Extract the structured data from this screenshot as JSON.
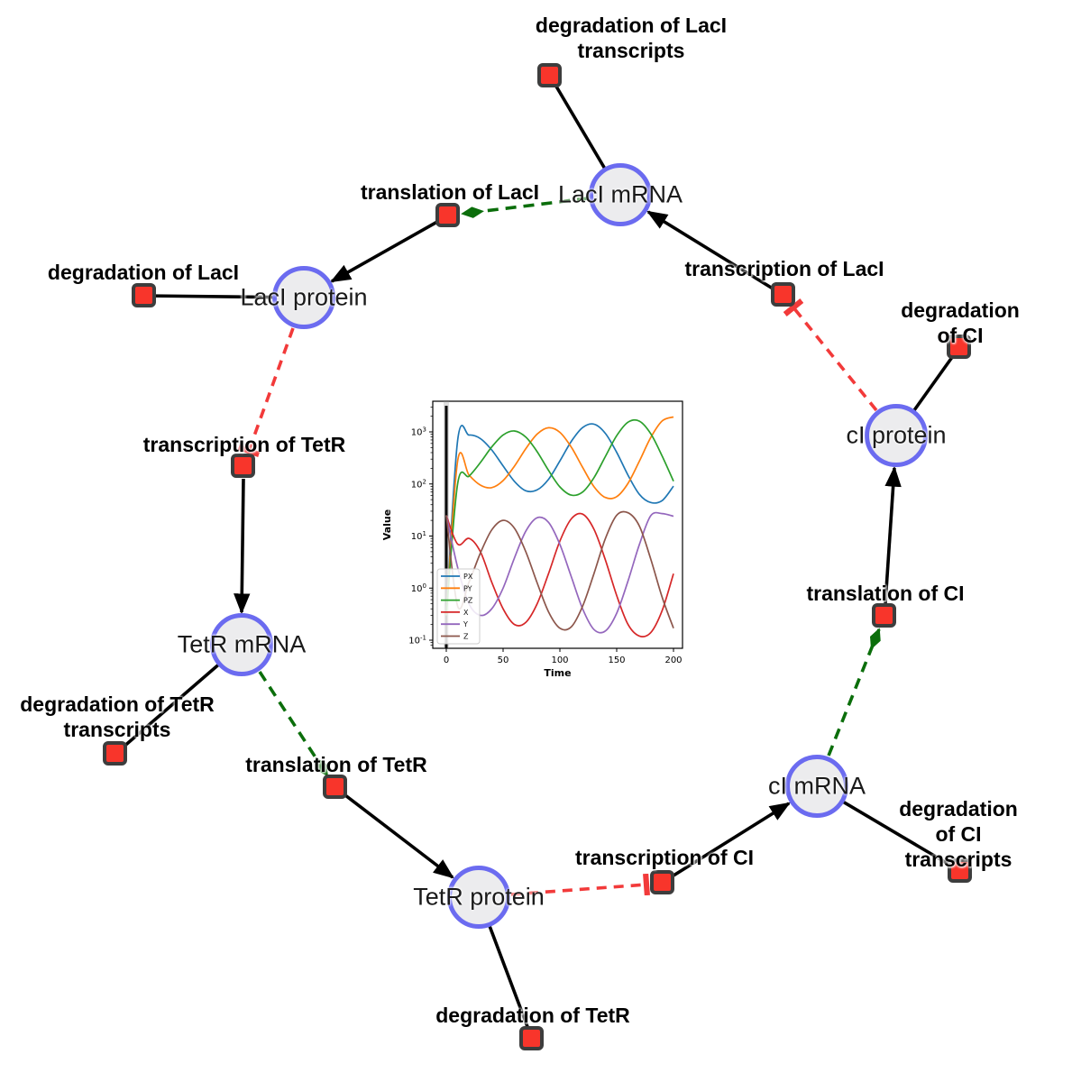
{
  "diagram": {
    "background": "#ffffff",
    "colors": {
      "species_fill": "#ececee",
      "species_border": "#6b6bf0",
      "reaction_fill": "#f8352b",
      "reaction_border": "#3d3d3d",
      "edge_black": "#000000",
      "edge_modifier_green": "#0b6e0b",
      "edge_inhibition_red": "#f23a3a"
    },
    "species_nodes": [
      {
        "id": "laci-mrna",
        "label": "LacI mRNA"
      },
      {
        "id": "laci-protein",
        "label": "LacI protein"
      },
      {
        "id": "tetr-mrna",
        "label": "TetR mRNA"
      },
      {
        "id": "tetr-protein",
        "label": "TetR protein"
      },
      {
        "id": "ci-mrna",
        "label": "cI mRNA"
      },
      {
        "id": "ci-protein",
        "label": "cI protein"
      }
    ],
    "reaction_nodes": [
      {
        "id": "deg-laci-transcripts",
        "label": "degradation of LacI\ntranscripts"
      },
      {
        "id": "translation-laci",
        "label": "translation of LacI"
      },
      {
        "id": "deg-laci",
        "label": "degradation of LacI"
      },
      {
        "id": "transcription-laci",
        "label": "transcription of LacI"
      },
      {
        "id": "deg-ci",
        "label": "degradation of CI"
      },
      {
        "id": "transcription-tetr",
        "label": "transcription of TetR"
      },
      {
        "id": "deg-tetr-transcripts",
        "label": "degradation of TetR\ntranscripts"
      },
      {
        "id": "translation-tetr",
        "label": "translation of TetR"
      },
      {
        "id": "deg-tetr",
        "label": "degradation of TetR"
      },
      {
        "id": "transcription-ci",
        "label": "transcription of CI"
      },
      {
        "id": "deg-ci-transcripts",
        "label": "degradation of CI\ntranscripts"
      },
      {
        "id": "translation-ci",
        "label": "translation of CI"
      }
    ],
    "edge_types": {
      "solid_black": "reactant/product link",
      "dashed_green_arrow": "modifier (mRNA catalyses translation)",
      "dashed_red_tee": "inhibition (protein represses transcription)"
    }
  },
  "chart_data": {
    "type": "line",
    "title": "",
    "xlabel": "Time",
    "ylabel": "Value",
    "xlim": [
      0,
      200
    ],
    "xticks": [
      0,
      50,
      100,
      150,
      200
    ],
    "ytick_exponents": [
      3,
      2,
      1,
      0,
      -1
    ],
    "yscale": "log",
    "grid": false,
    "legend_position": "lower left",
    "vline_at_x": 0,
    "x": [
      0,
      10,
      20,
      30,
      40,
      50,
      60,
      70,
      80,
      90,
      100,
      110,
      120,
      130,
      140,
      150,
      160,
      170,
      180,
      190,
      200
    ],
    "series": [
      {
        "name": "PX",
        "color": "#1f77b4",
        "values": [
          0.3,
          690,
          870,
          745,
          450,
          222,
          112,
          74,
          77,
          123,
          277,
          655,
          1210,
          1410,
          940,
          405,
          147,
          63,
          44,
          48,
          91
        ]
      },
      {
        "name": "PY",
        "color": "#ff7f0e",
        "values": [
          0.3,
          278,
          148,
          95,
          85,
          116,
          220,
          477,
          908,
          1200,
          980,
          511,
          209,
          89,
          55,
          57,
          103,
          275,
          780,
          1620,
          1940
        ]
      },
      {
        "name": "PZ",
        "color": "#2ca02c",
        "values": [
          0.3,
          101,
          141,
          258,
          513,
          872,
          1040,
          794,
          416,
          182,
          88,
          61,
          70,
          132,
          336,
          845,
          1540,
          1610,
          920,
          344,
          113
        ]
      },
      {
        "name": "X",
        "color": "#d62728",
        "values": [
          25,
          7,
          9,
          5,
          1.3,
          0.4,
          0.2,
          0.22,
          0.5,
          1.9,
          8,
          21.3,
          26.4,
          13.5,
          3.5,
          0.72,
          0.2,
          0.12,
          0.14,
          0.37,
          1.9
        ]
      },
      {
        "name": "Y",
        "color": "#9467bd",
        "values": [
          25,
          2.5,
          0.5,
          0.3,
          0.4,
          1.0,
          3.8,
          12.4,
          22.5,
          18.3,
          6.9,
          1.66,
          0.4,
          0.16,
          0.15,
          0.33,
          1.38,
          6.9,
          24.6,
          27,
          24
        ]
      },
      {
        "name": "Z",
        "color": "#8c564b",
        "values": [
          25,
          0.45,
          1.3,
          4.7,
          13.1,
          20,
          14.1,
          5.0,
          1.26,
          0.35,
          0.17,
          0.18,
          0.45,
          1.9,
          8.9,
          25.1,
          28,
          15.5,
          3.6,
          0.67,
          0.17
        ]
      }
    ]
  }
}
